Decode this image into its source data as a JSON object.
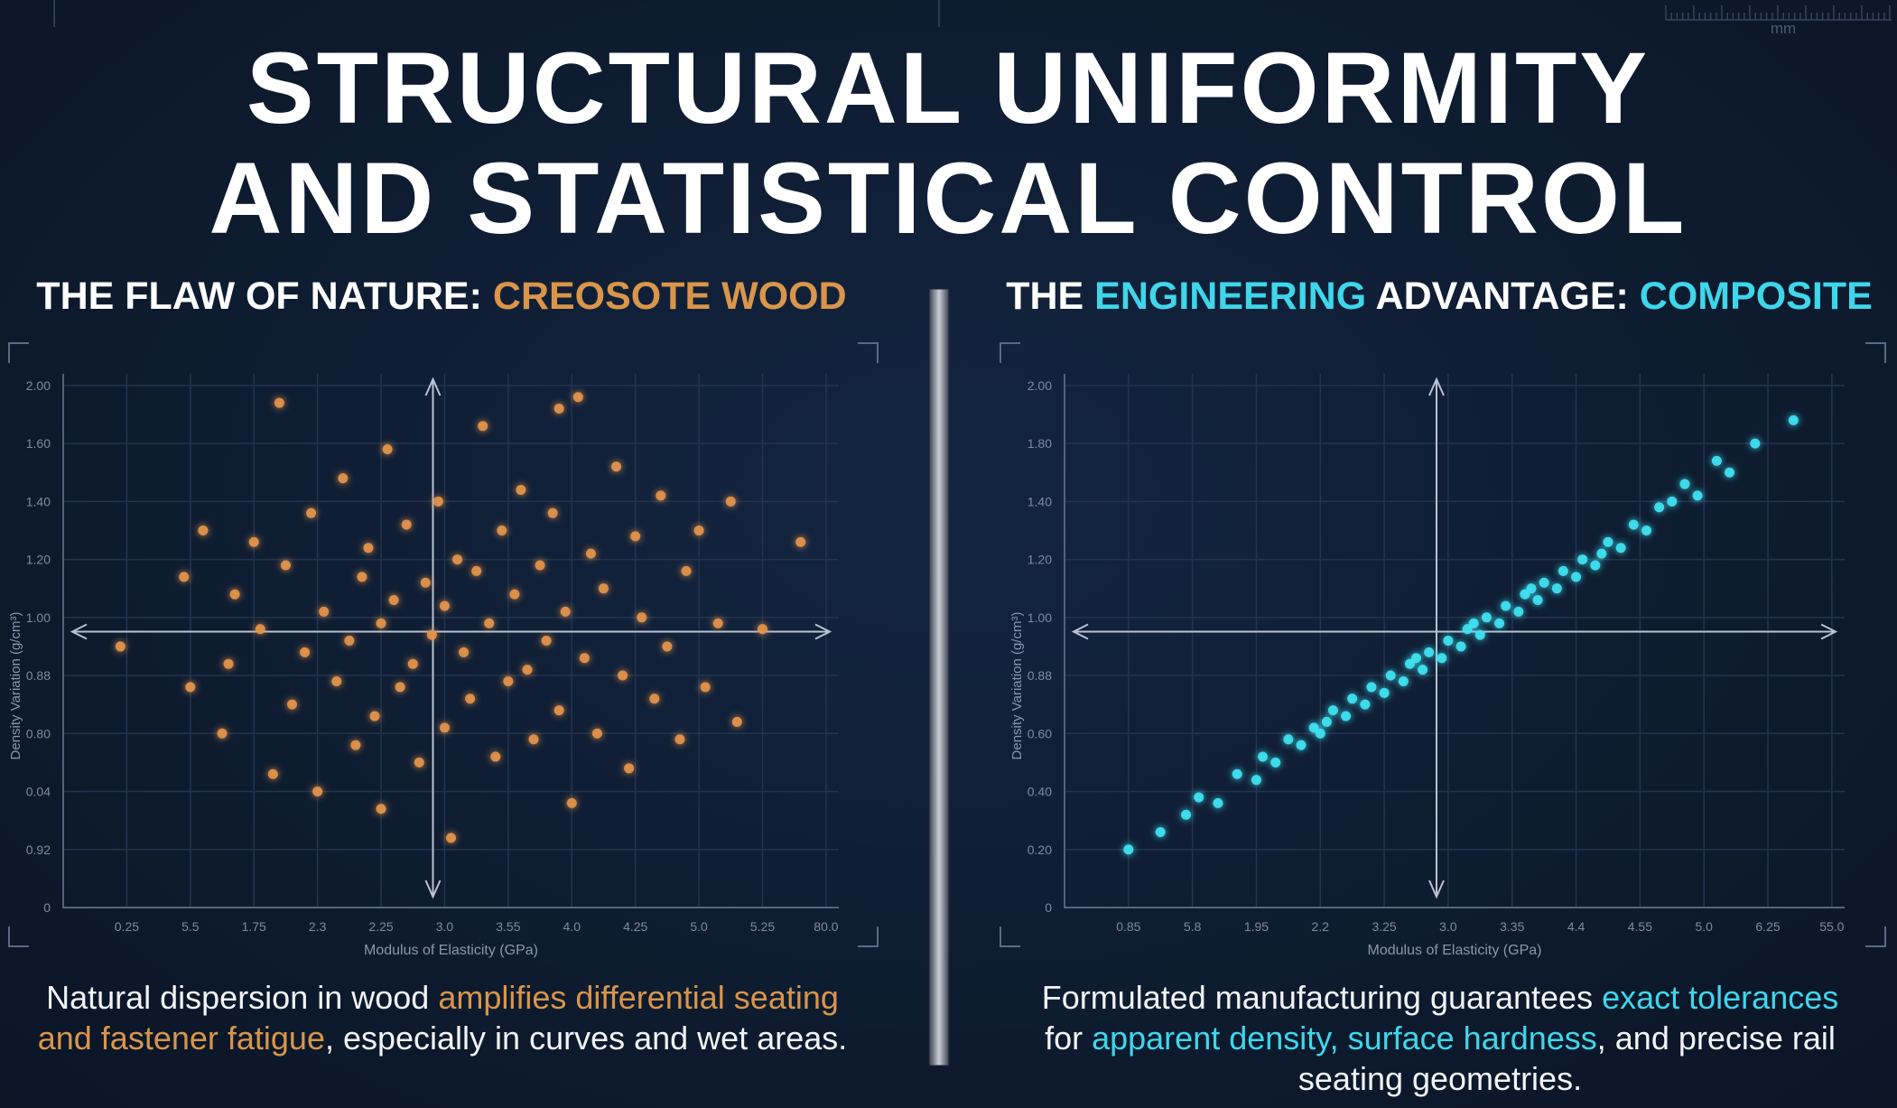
{
  "title": [
    "STRUCTURAL UNIFORMITY",
    "AND STATISTICAL CONTROL"
  ],
  "ruler_unit": "mm",
  "panels": [
    {
      "heading": [
        "THE FLAW OF NATURE: ",
        "CREOSOTE WOOD"
      ],
      "caption": [
        "Natural dispersion in wood ",
        "amplifies differential seating and fastener fatigue",
        ", especially in curves and wet areas."
      ]
    },
    {
      "heading": [
        "THE ",
        "ENGINEERING",
        " ADVANTAGE: ",
        "COMPOSITE"
      ],
      "caption": [
        "Formulated manufacturing guarantees ",
        "exact tolerances",
        " for ",
        "apparent density, surface hardness",
        ", and precise rail seating geometries."
      ]
    }
  ],
  "chart_data": [
    {
      "type": "scatter",
      "color": "#e3944a",
      "x_label": "Modulus of Elasticity (GPa)",
      "y_label": "Density Variation (g/cm³)",
      "xlim": [
        0,
        12.2
      ],
      "ylim": [
        0,
        9.2
      ],
      "grid": true,
      "xticks": [
        {
          "value": 1,
          "label": "0.25"
        },
        {
          "value": 2,
          "label": "5.5"
        },
        {
          "value": 3,
          "label": "1.75"
        },
        {
          "value": 4,
          "label": "2.3"
        },
        {
          "value": 5,
          "label": "2.25"
        },
        {
          "value": 6,
          "label": "3.0"
        },
        {
          "value": 7,
          "label": "3.55"
        },
        {
          "value": 8,
          "label": "4.0"
        },
        {
          "value": 9,
          "label": "4.25"
        },
        {
          "value": 10,
          "label": "5.0"
        },
        {
          "value": 11,
          "label": "5.25"
        },
        {
          "value": 12,
          "label": "80.0"
        }
      ],
      "yticks": [
        {
          "value": 0,
          "label": "0"
        },
        {
          "value": 1,
          "label": "0.92"
        },
        {
          "value": 2,
          "label": "0.04"
        },
        {
          "value": 3,
          "label": "0.80"
        },
        {
          "value": 4,
          "label": "0.88"
        },
        {
          "value": 5,
          "label": "1.00"
        },
        {
          "value": 6,
          "label": "1.20"
        },
        {
          "value": 7,
          "label": "1.40"
        },
        {
          "value": 8,
          "label": "1.60"
        },
        {
          "value": 9,
          "label": "2.00"
        }
      ],
      "x": [
        0.9,
        2.0,
        2.5,
        2.6,
        2.7,
        3.0,
        3.1,
        3.3,
        3.5,
        3.6,
        3.8,
        3.9,
        4.0,
        4.1,
        4.3,
        4.4,
        4.5,
        4.6,
        4.7,
        4.8,
        4.9,
        5.0,
        5.0,
        5.1,
        5.2,
        5.3,
        5.4,
        5.5,
        5.6,
        5.7,
        5.8,
        5.9,
        6.0,
        6.0,
        6.1,
        6.2,
        6.3,
        6.4,
        6.5,
        6.6,
        6.7,
        6.8,
        6.9,
        7.0,
        7.1,
        7.2,
        7.3,
        7.4,
        7.5,
        7.6,
        7.7,
        7.8,
        7.9,
        8.0,
        8.1,
        8.2,
        8.3,
        8.4,
        8.5,
        8.7,
        8.8,
        8.9,
        9.0,
        9.1,
        9.3,
        9.4,
        9.5,
        9.7,
        9.8,
        10.0,
        10.1,
        10.3,
        10.5,
        10.6,
        11.0,
        11.6,
        3.4,
        2.2,
        1.9,
        7.8
      ],
      "values": [
        4.5,
        3.8,
        3.0,
        4.2,
        5.4,
        6.3,
        4.8,
        2.3,
        5.9,
        3.5,
        4.4,
        6.8,
        2.0,
        5.1,
        3.9,
        7.4,
        4.6,
        2.8,
        5.7,
        6.2,
        3.3,
        4.9,
        1.7,
        7.9,
        5.3,
        3.8,
        6.6,
        4.2,
        2.5,
        5.6,
        4.7,
        7.0,
        3.1,
        5.2,
        1.2,
        6.0,
        4.4,
        3.6,
        5.8,
        8.3,
        4.9,
        2.6,
        6.5,
        3.9,
        5.4,
        7.2,
        4.1,
        2.9,
        5.9,
        4.6,
        6.8,
        3.4,
        5.1,
        1.8,
        8.8,
        4.3,
        6.1,
        3.0,
        5.5,
        7.6,
        4.0,
        2.4,
        6.4,
        5.0,
        3.6,
        7.1,
        4.5,
        2.9,
        5.8,
        6.5,
        3.8,
        4.9,
        7.0,
        3.2,
        4.8,
        6.3,
        8.7,
        6.5,
        5.7,
        8.6
      ]
    },
    {
      "type": "scatter",
      "color": "#3fe3f2",
      "x_label": "Modulus of Elasticity (GPa)",
      "y_label": "Density Variation (g/cm³)",
      "xlim": [
        0,
        12.2
      ],
      "ylim": [
        0,
        9.2
      ],
      "grid": true,
      "xticks": [
        {
          "value": 1,
          "label": "0.85"
        },
        {
          "value": 2,
          "label": "5.8"
        },
        {
          "value": 3,
          "label": "1.95"
        },
        {
          "value": 4,
          "label": "2.2"
        },
        {
          "value": 5,
          "label": "3.25"
        },
        {
          "value": 6,
          "label": "3.0"
        },
        {
          "value": 7,
          "label": "3.35"
        },
        {
          "value": 8,
          "label": "4.4"
        },
        {
          "value": 9,
          "label": "4.55"
        },
        {
          "value": 10,
          "label": "5.0"
        },
        {
          "value": 11,
          "label": "6.25"
        },
        {
          "value": 12,
          "label": "55.0"
        }
      ],
      "yticks": [
        {
          "value": 0,
          "label": "0"
        },
        {
          "value": 1,
          "label": "0.20"
        },
        {
          "value": 2,
          "label": "0.40"
        },
        {
          "value": 3,
          "label": "0.60"
        },
        {
          "value": 4,
          "label": "0.88"
        },
        {
          "value": 5,
          "label": "1.00"
        },
        {
          "value": 6,
          "label": "1.20"
        },
        {
          "value": 7,
          "label": "1.40"
        },
        {
          "value": 8,
          "label": "1.80"
        },
        {
          "value": 9,
          "label": "2.00"
        }
      ],
      "x": [
        1.0,
        1.5,
        1.9,
        2.1,
        2.4,
        2.7,
        3.0,
        3.1,
        3.3,
        3.5,
        3.7,
        3.9,
        4.0,
        4.2,
        4.4,
        4.5,
        4.7,
        4.8,
        5.0,
        5.1,
        5.3,
        5.4,
        5.6,
        5.7,
        5.9,
        6.0,
        6.2,
        6.3,
        6.5,
        6.6,
        6.8,
        6.9,
        7.1,
        7.2,
        7.4,
        7.5,
        7.7,
        7.8,
        8.0,
        8.1,
        8.3,
        8.5,
        8.7,
        8.9,
        9.1,
        9.3,
        9.5,
        9.7,
        9.9,
        10.2,
        10.4,
        10.8,
        11.4,
        4.1,
        5.5,
        6.4,
        7.3,
        8.4
      ],
      "values": [
        1.0,
        1.3,
        1.6,
        1.9,
        1.8,
        2.3,
        2.2,
        2.6,
        2.5,
        2.9,
        2.8,
        3.1,
        3.0,
        3.4,
        3.3,
        3.6,
        3.5,
        3.8,
        3.7,
        4.0,
        3.9,
        4.2,
        4.1,
        4.4,
        4.3,
        4.6,
        4.5,
        4.8,
        4.7,
        5.0,
        4.9,
        5.2,
        5.1,
        5.4,
        5.3,
        5.6,
        5.5,
        5.8,
        5.7,
        6.0,
        5.9,
        6.3,
        6.2,
        6.6,
        6.5,
        6.9,
        7.0,
        7.3,
        7.1,
        7.7,
        7.5,
        8.0,
        8.4,
        3.2,
        4.3,
        4.9,
        5.5,
        6.1
      ]
    }
  ]
}
